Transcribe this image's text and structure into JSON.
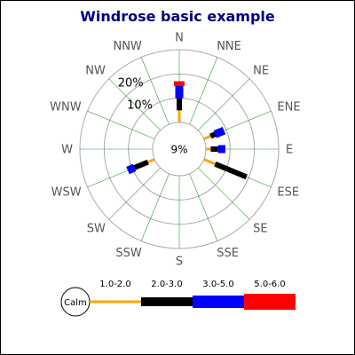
{
  "chart_data": {
    "type": "windrose",
    "title": "Windrose basic example",
    "directions": [
      "N",
      "NNE",
      "NE",
      "ENE",
      "E",
      "ESE",
      "SE",
      "SSE",
      "S",
      "SSW",
      "SW",
      "WSW",
      "W",
      "WNW",
      "NW",
      "NNW"
    ],
    "range_labels": [
      "1.0-2.0",
      "2.0-3.0",
      "3.0-5.0",
      "5.0-6.0"
    ],
    "range_colors": [
      "#FFA500",
      "#000000",
      "#0000FF",
      "#FF0000"
    ],
    "calm_label": "Calm",
    "calm_value_label": "9%",
    "ring_labels": [
      "10%",
      "20%"
    ],
    "ring_values": [
      10,
      20
    ],
    "axis_max": 30,
    "grid": true,
    "legend_position": "bottom",
    "data": [
      {
        "direction": "N",
        "segments": [
          5,
          5,
          5,
          2
        ]
      },
      {
        "direction": "ENE",
        "segments": [
          3,
          2,
          4
        ]
      },
      {
        "direction": "E",
        "segments": [
          2,
          3,
          3
        ]
      },
      {
        "direction": "ESE",
        "segments": [
          5,
          14
        ]
      },
      {
        "direction": "WSW",
        "segments": [
          3,
          6,
          3
        ]
      }
    ]
  }
}
